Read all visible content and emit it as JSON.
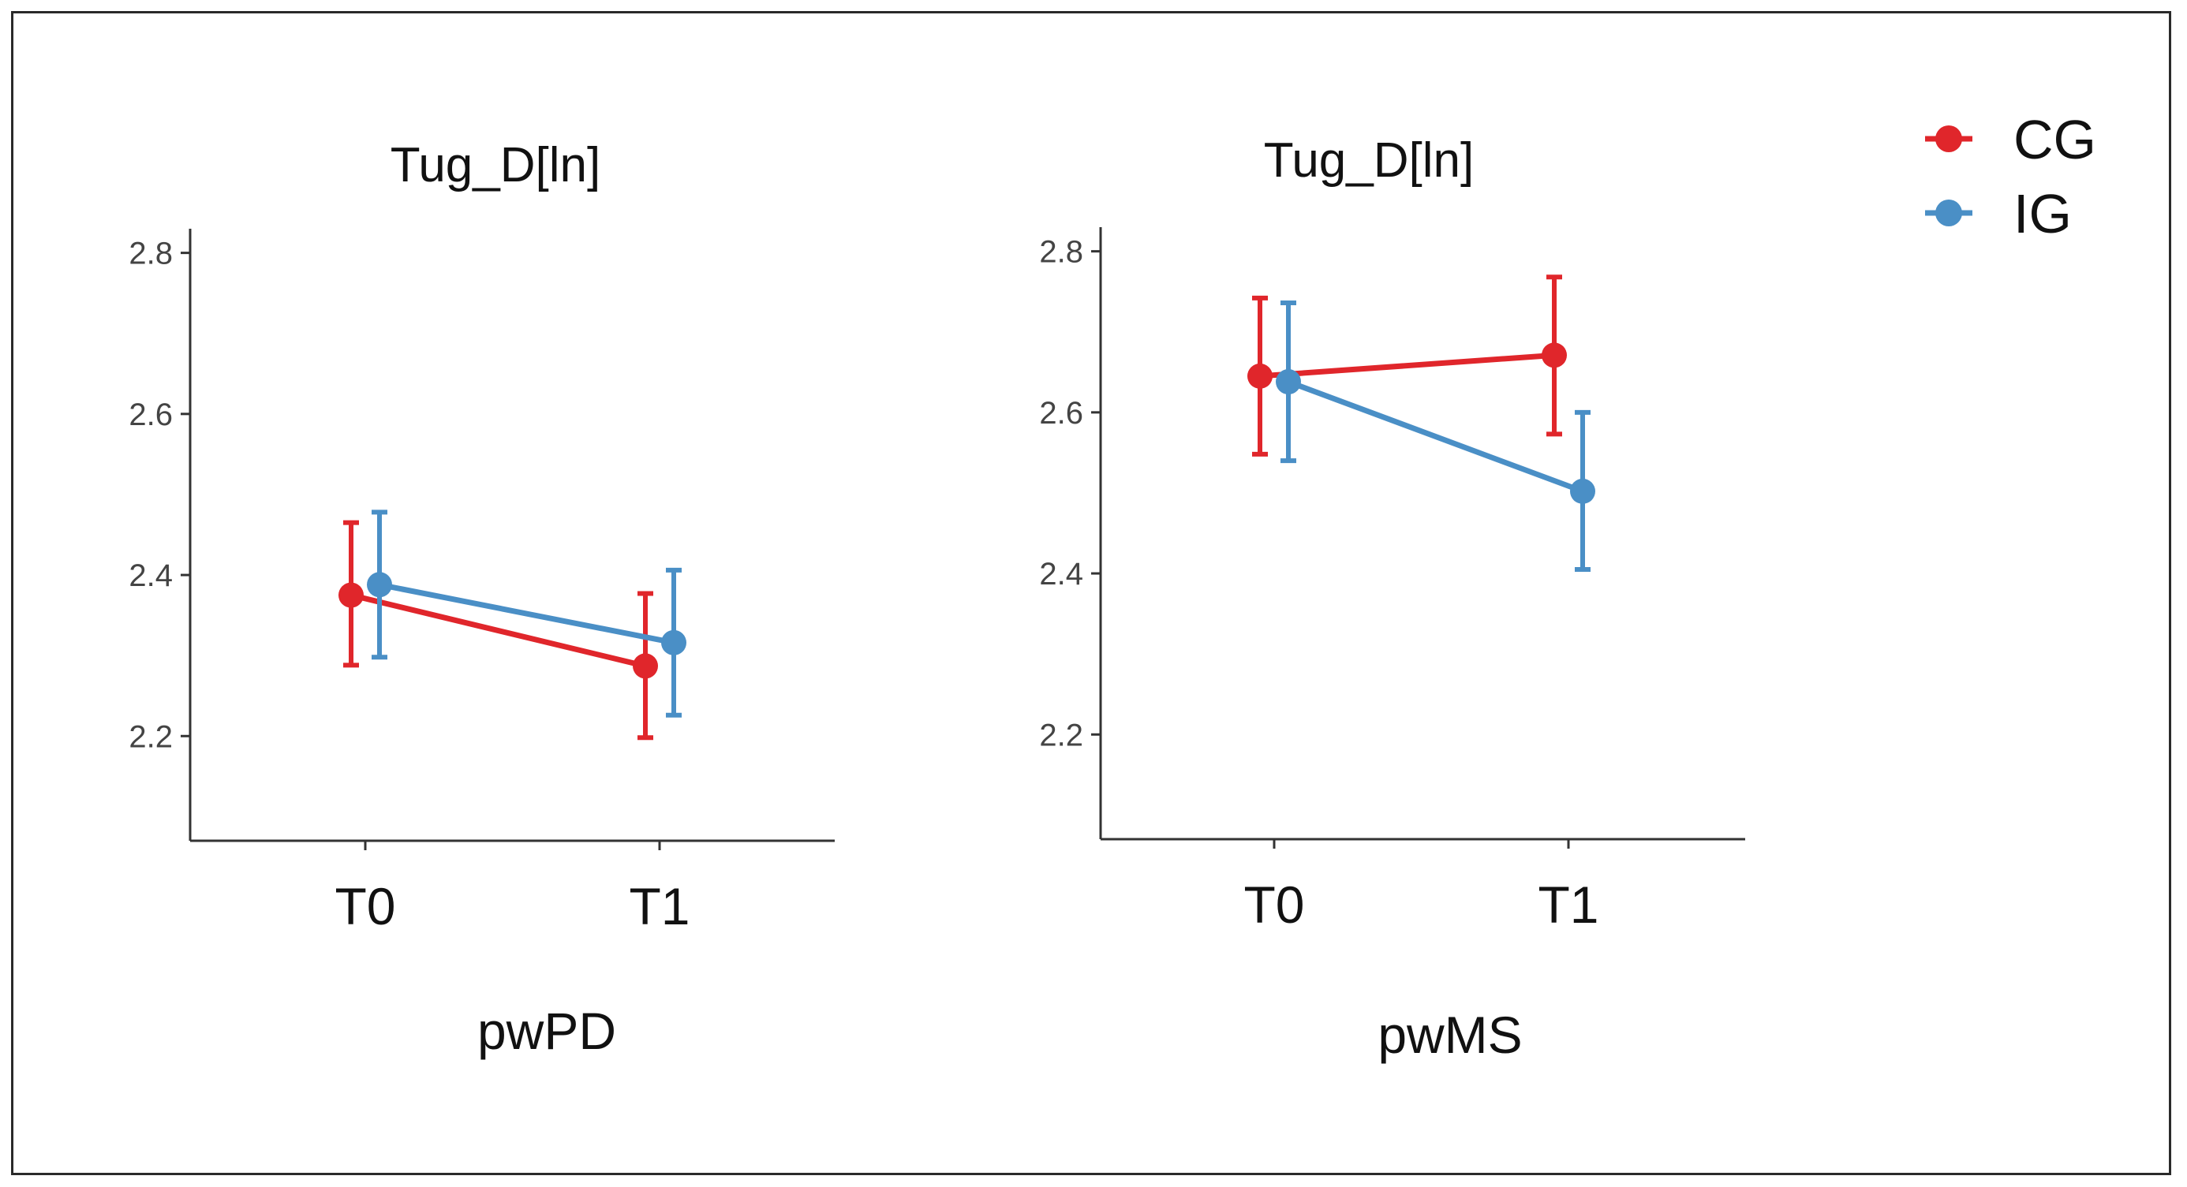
{
  "colors": {
    "CG": "#e0262b",
    "IG": "#4a8fc6"
  },
  "legend": {
    "placement": "top-right",
    "items": [
      {
        "label": "CG",
        "color": "#e0262b"
      },
      {
        "label": "IG",
        "color": "#4a8fc6"
      }
    ]
  },
  "chart_data": [
    {
      "type": "line",
      "title": "Tug_D[ln]",
      "xlabel": "pwPD",
      "ylabel": "",
      "categories": [
        "T0",
        "T1"
      ],
      "ylim": [
        2.07,
        2.83
      ],
      "yticks": [
        "2.2",
        "2.4",
        "2.6",
        "2.8"
      ],
      "grid": false,
      "series": [
        {
          "name": "CG",
          "values": [
            2.375,
            2.287
          ],
          "err_low": [
            2.288,
            2.198
          ],
          "err_high": [
            2.465,
            2.377
          ]
        },
        {
          "name": "IG",
          "values": [
            2.388,
            2.316
          ],
          "err_low": [
            2.298,
            2.226
          ],
          "err_high": [
            2.478,
            2.406
          ]
        }
      ]
    },
    {
      "type": "line",
      "title": "Tug_D[ln]",
      "xlabel": "pwMS",
      "ylabel": "",
      "categories": [
        "T0",
        "T1"
      ],
      "ylim": [
        2.07,
        2.83
      ],
      "yticks": [
        "2.2",
        "2.4",
        "2.6",
        "2.8"
      ],
      "grid": false,
      "series": [
        {
          "name": "CG",
          "values": [
            2.645,
            2.671
          ],
          "err_low": [
            2.548,
            2.573
          ],
          "err_high": [
            2.742,
            2.768
          ]
        },
        {
          "name": "IG",
          "values": [
            2.638,
            2.502
          ],
          "err_low": [
            2.54,
            2.405
          ],
          "err_high": [
            2.736,
            2.6
          ]
        }
      ]
    }
  ]
}
